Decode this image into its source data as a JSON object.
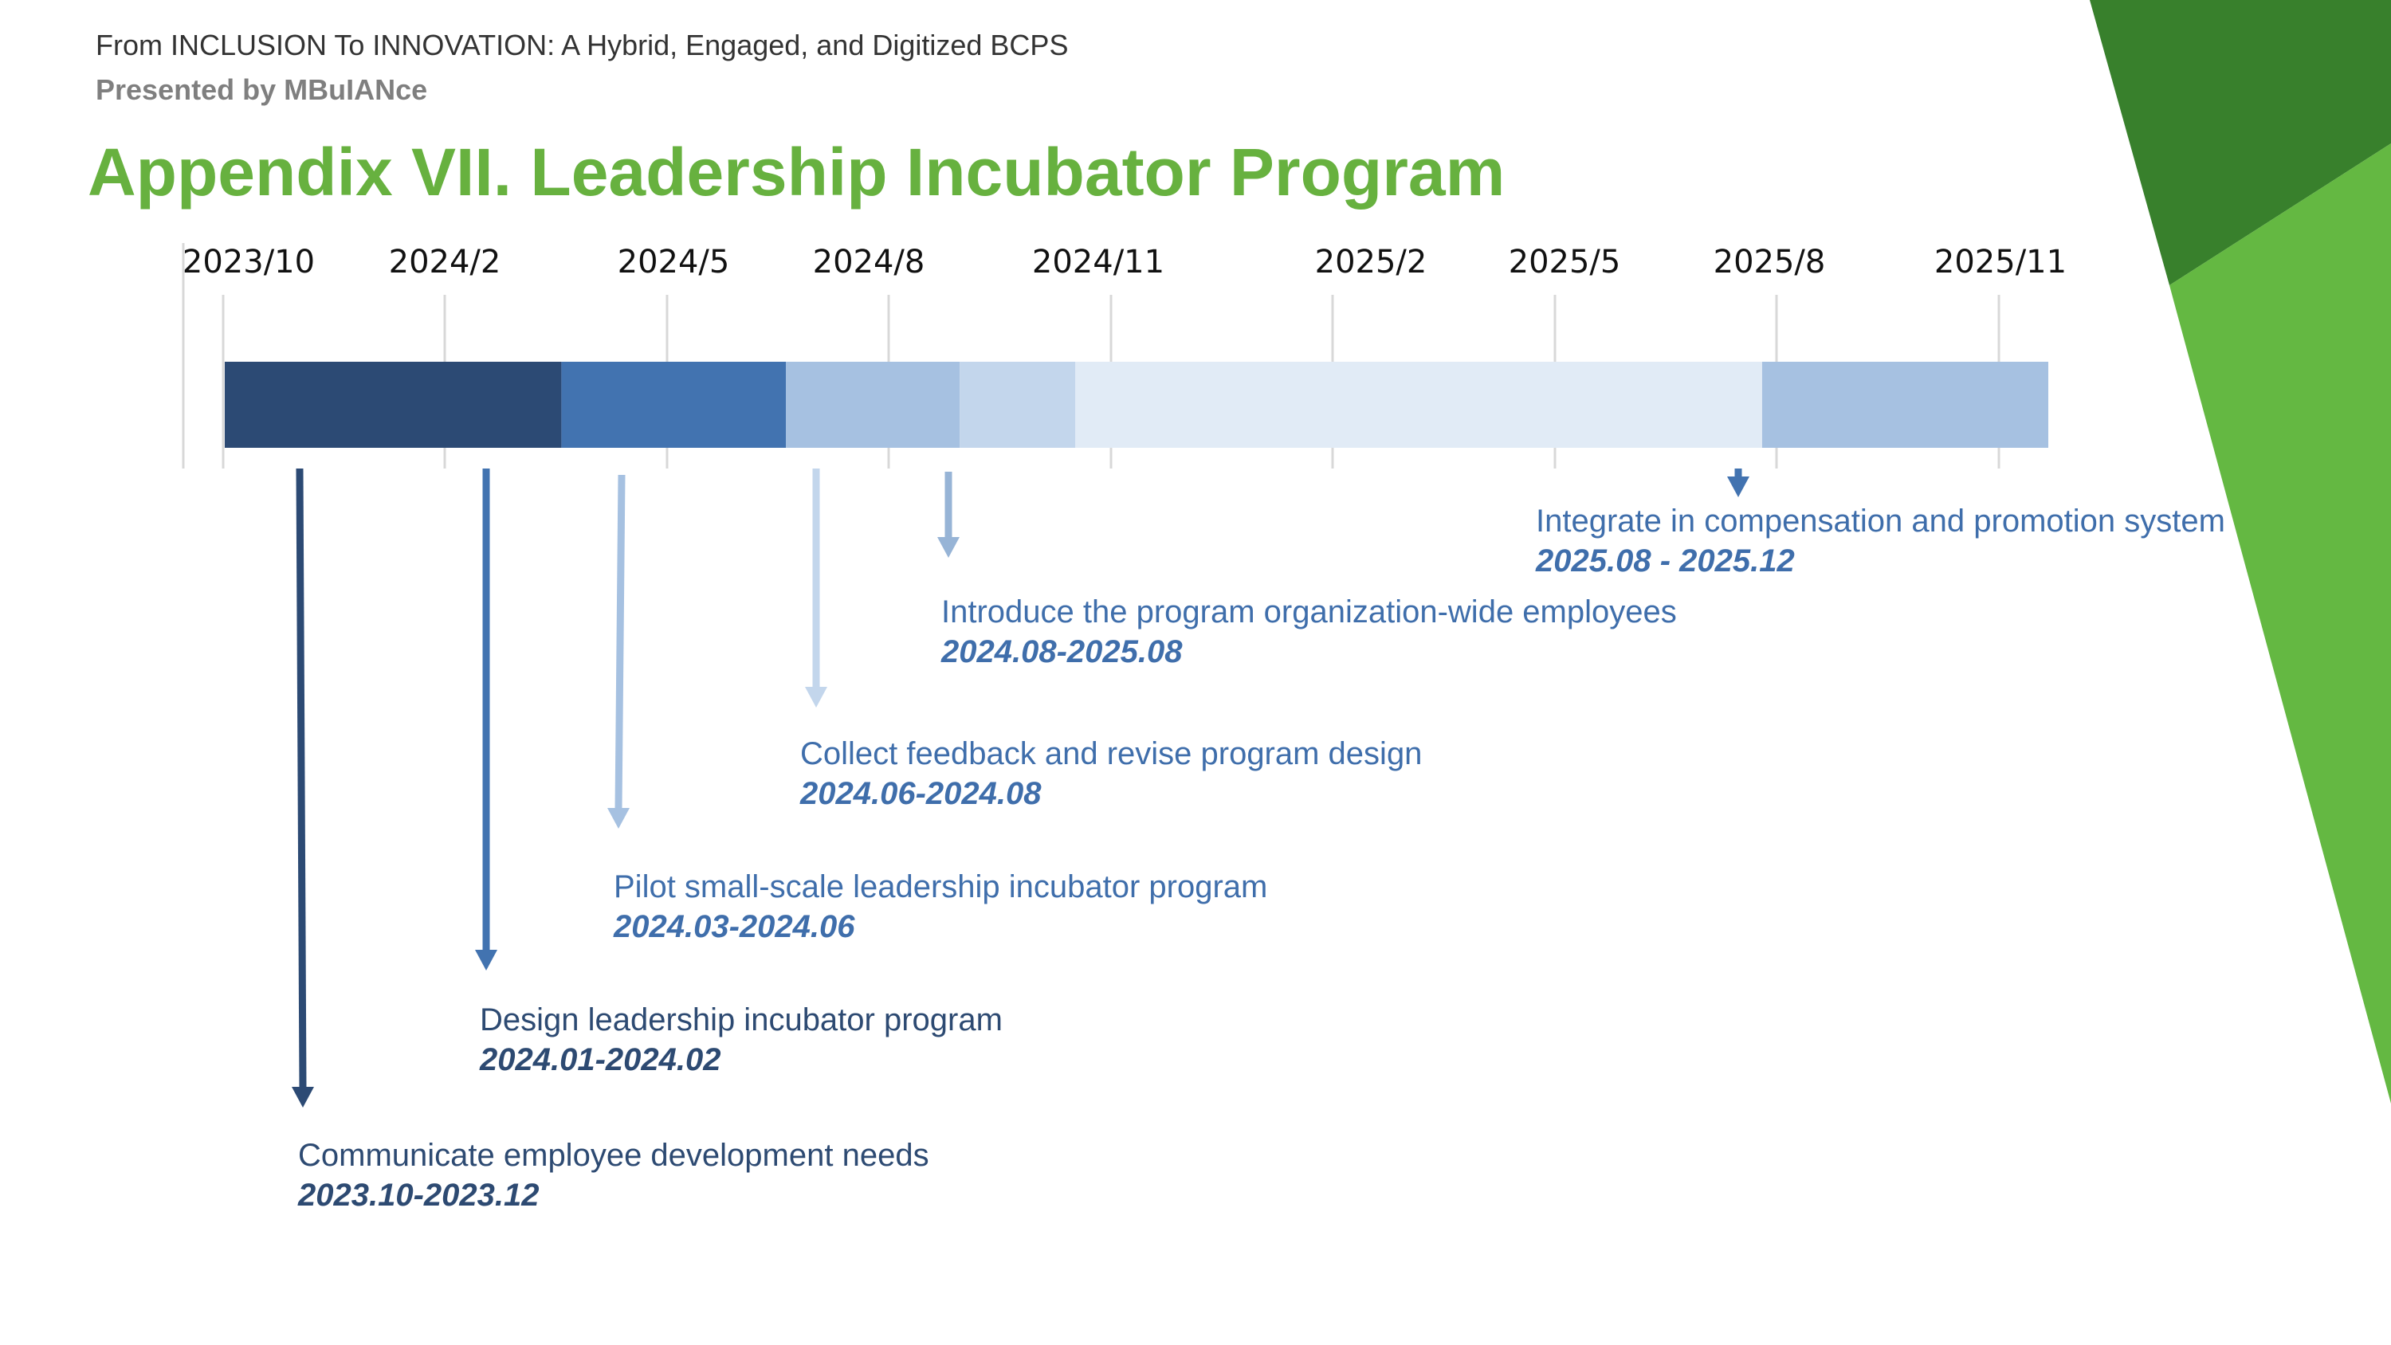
{
  "header": {
    "subtitle": "From INCLUSION To INNOVATION: A Hybrid, Engaged, and Digitized BCPS",
    "presenter": "Presented by MBuIANce"
  },
  "title": "Appendix VII. Leadership Incubator Program",
  "colors": {
    "title": "#67b13f",
    "deco_dark_green": "#38802c",
    "deco_light_green": "#64b842",
    "text_dark_blue": "#2d4a72",
    "text_mid_blue": "#3f6eab",
    "gridline": "#d8d8d8"
  },
  "chart_data": {
    "type": "gantt",
    "axis_ticks": [
      "2023/10",
      "2024/2",
      "2024/5",
      "2024/8",
      "2024/11",
      "2025/2",
      "2025/5",
      "2025/8",
      "2025/11"
    ],
    "tasks": [
      {
        "label": "Communicate employee development needs",
        "dates": "2023.10-2023.12",
        "start": "2023-10",
        "end": "2023-12",
        "bar_color": "#2c4a74",
        "arrow_color": "#2c4a74",
        "text_color": "#2d4a72"
      },
      {
        "label": "Design leadership incubator program",
        "dates": "2024.01-2024.02",
        "start": "2024-01",
        "end": "2024-02",
        "bar_color": "#4273b0",
        "arrow_color": "#4273b0",
        "text_color": "#2d4a72"
      },
      {
        "label": "Pilot small-scale leadership incubator program",
        "dates": "2024.03-2024.06",
        "start": "2024-03",
        "end": "2024-06",
        "bar_color": "#a6c1e1",
        "arrow_color": "#a6c1e1",
        "text_color": "#3f6eab"
      },
      {
        "label": "Collect feedback and revise program design",
        "dates": "2024.06-2024.08",
        "start": "2024-06",
        "end": "2024-08",
        "bar_color": "#c3d6ec",
        "arrow_color": "#c3d6ec",
        "text_color": "#3f6eab"
      },
      {
        "label": "Introduce the program organization-wide employees",
        "dates": "2024.08-2025.08",
        "start": "2024-08",
        "end": "2025-08",
        "bar_color": "#e1ebf6",
        "arrow_color": "#97b4d6",
        "text_color": "#3f6eab"
      },
      {
        "label": "Integrate in compensation and promotion system",
        "dates": "2025.08 - 2025.12",
        "start": "2025-08",
        "end": "2025-12",
        "bar_color": "#a6c1e1",
        "arrow_color": "#4273b0",
        "text_color": "#3f6eab"
      }
    ]
  }
}
